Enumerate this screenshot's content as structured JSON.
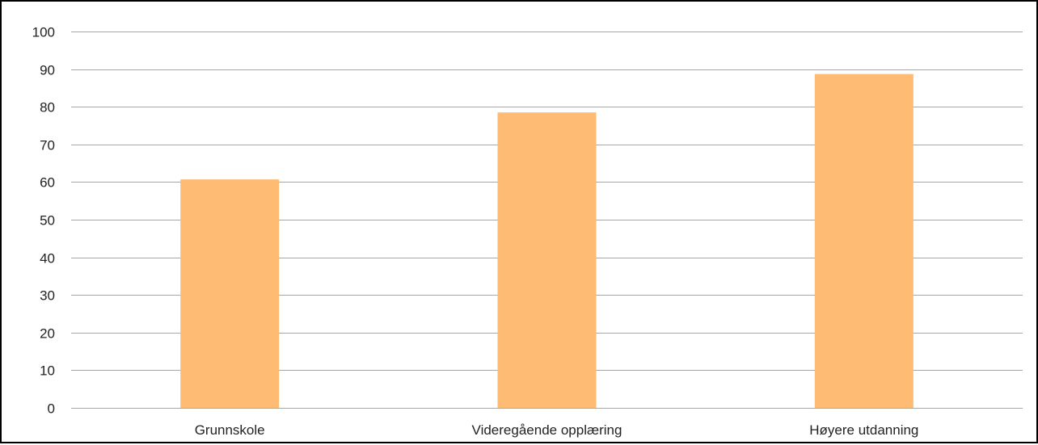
{
  "chart_data": {
    "type": "bar",
    "categories": [
      "Grunnskole",
      "Videregående opplæring",
      "Høyere utdanning"
    ],
    "values": [
      60.7,
      78.5,
      88.7
    ],
    "title": "",
    "xlabel": "",
    "ylabel": "",
    "ylim": [
      0,
      100
    ],
    "yticks": [
      "0",
      "10",
      "20",
      "30",
      "40",
      "50",
      "60",
      "70",
      "80",
      "90",
      "100"
    ],
    "grid": true,
    "legend": "none",
    "colors": {
      "bar": "#FDBB74",
      "gridline": "#A6A6A6",
      "axis": "#A6A6A6",
      "text": "#222222",
      "border": "#000000"
    }
  }
}
